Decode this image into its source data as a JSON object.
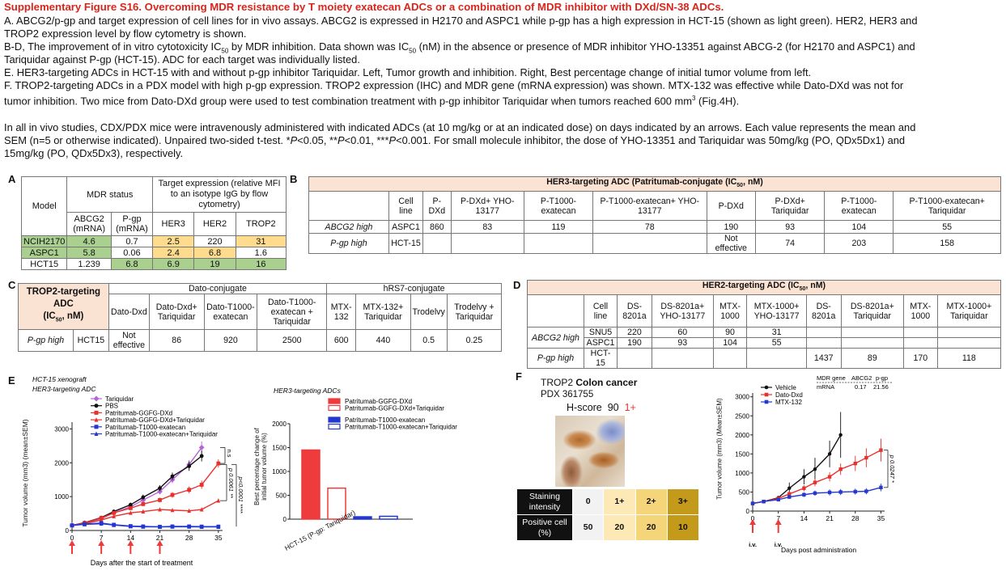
{
  "header": {
    "title": "Supplementary Figure S16. Overcoming MDR resistance by T moiety exatecan ADCs or a combination of MDR inhibitor with DXd/SN-38 ADCs.",
    "lines": [
      "A. ABCG2/p-gp and target expression of cell lines for in vivo assays. ABCG2 is expressed in H2170 and ASPC1 while p-gp has a high expression in HCT-15 (shown as light green). HER2, HER3 and",
      "TROP2 expression level by flow cytometry is shown.",
      "B-D, The improvement of in vitro cytotoxicity IC50 by MDR inhibition. Data shown was IC50 (nM) in the absence or presence of MDR inhibitor YHO-13351 against ABCG-2 (for H2170 and ASPC1) and",
      "Tariquidar against P-gp (HCT-15).  ADC for each target was individually listed.",
      "E. HER3-targeting ADCs in HCT-15 with and without p-gp inhibitor Tariquidar. Left, Tumor growth and inhibition. Right, Best percentage change of initial tumor volume from left.",
      "F. TROP2-targeting ADCs in a PDX model with high p-gp expression. TROP2 expression (IHC) and MDR gene (mRNA expression) was shown. MTX-132 was effective while Dato-DXd was not for",
      "tumor inhibition. Two mice from Dato-DXd group were used to test combination treatment with p-gp inhibitor Tariquidar when tumors reached 600 mm3 (Fig.4H).",
      "",
      "In all in vivo studies, CDX/PDX mice were intravenously administered with indicated ADCs (at 10 mg/kg or at an indicated dose) on days indicated by an arrows. Each value represents the mean and",
      "SEM (n=5 or otherwise indicated). Unpaired two-sided t-test. *P<0.05, **P<0.01, ***P<0.001. For small molecule inhibitor, the dose of YHO-13351 and Tariquidar was 50mg/kg (PO, QDx5Dx1) and",
      "15mg/kg (PO, QDx5Dx3), respectively."
    ]
  },
  "panelA": {
    "label": "A",
    "model": "Model",
    "mdr": "MDR status",
    "target": "Target expression (relative MFI to an isotype IgG by flow cytometry)",
    "cols": [
      "ABCG2 (mRNA)",
      "P-gp (mRNA)",
      "HER3",
      "HER2",
      "TROP2"
    ],
    "rows": [
      [
        "NCIH2170",
        "4.6",
        "0.7",
        "2.5",
        "220",
        "31"
      ],
      [
        "ASPC1",
        "5.8",
        "0.06",
        "2.4",
        "6.8",
        "1.6"
      ],
      [
        "HCT15",
        "1.239",
        "6.8",
        "6.9",
        "19",
        "16"
      ]
    ]
  },
  "panelB": {
    "label": "B",
    "title": "HER3-targeting ADC (Patritumab-conjugate (IC50, nM)",
    "cols": [
      "Cell line",
      "P-DXd",
      "P-DXd+ YHO-13177",
      "P-T1000-exatecan",
      "P-T1000-exatecan+ YHO-13177",
      "P-DXd",
      "P-DXd+ Tariquidar",
      "P-T1000-exatecan",
      "P-T1000-exatecan+ Tariquidar"
    ],
    "rows": [
      [
        "ABCG2 high",
        "ASPC1",
        "860",
        "83",
        "119",
        "78",
        "190",
        "93",
        "104",
        "55"
      ],
      [
        "P-gp high",
        "HCT-15",
        "",
        "",
        "",
        "",
        "Not effective",
        "74",
        "203",
        "158"
      ]
    ]
  },
  "panelC": {
    "label": "C",
    "corner": "TROP2-targeting ADC (IC50, nM)",
    "g1": "Dato-conjugate",
    "g2": "hRS7-conjugate",
    "cols": [
      "Dato-Dxd",
      "Dato-Dxd+ Tariquidar",
      "Dato-T1000-exatecan",
      "Dato-T1000-exatecan + Tariquidar",
      "MTX-132",
      "MTX-132+ Tariquidar",
      "Trodelvy",
      "Trodelvy + Tariquidar"
    ],
    "row": [
      "P-gp high",
      "HCT15",
      "Not effective",
      "86",
      "920",
      "2500",
      "600",
      "440",
      "0.5",
      "0.25"
    ]
  },
  "panelD": {
    "label": "D",
    "title": "HER2-targeting ADC (IC50, nM)",
    "cols": [
      "Cell line",
      "DS-8201a",
      "DS-8201a+ YHO-13177",
      "MTX-1000",
      "MTX-1000+ YHO-13177",
      "DS-8201a",
      "DS-8201a+ Tariquidar",
      "MTX-1000",
      "MTX-1000+ Tariquidar"
    ],
    "rows": [
      [
        "ABCG2 high",
        "SNU5",
        "220",
        "60",
        "90",
        "31",
        "",
        "",
        "",
        ""
      ],
      [
        "",
        "ASPC1",
        "190",
        "93",
        "104",
        "55",
        "",
        "",
        "",
        ""
      ],
      [
        "P-gp high",
        "HCT-15",
        "",
        "",
        "",
        "",
        "1437",
        "89",
        "170",
        "118"
      ]
    ]
  },
  "panelE": {
    "label": "E",
    "subtitle1": "HCT-15 xenograft",
    "subtitle2": "HER3-targeting ADC",
    "ylabel": "Tumor volume (mm3) (mean±SEM)",
    "xlabel": "Days after the start of treatment",
    "ns": "n.s",
    "p1": "p 0.0061 **",
    "p2": "p<0.0001 ****",
    "bar_title": "HER3-targeting ADCs",
    "bar_ylabel1": "Best percentage change of",
    "bar_ylabel2": "initial tumor volume (%)",
    "bar_xlabel": "HCT-15 (P-gp: Tariquidar)"
  },
  "panelF": {
    "label": "F",
    "title1": "TROP2",
    "title2": "Colon cancer",
    "pdx": "PDX 361755",
    "hscore": "H-score",
    "hval": "90",
    "hplus": "1+",
    "grid": {
      "r1": "Staining intensity",
      "r2": "Positive cell (%)",
      "a": [
        "0",
        "1+",
        "2+",
        "3+"
      ],
      "b": [
        "50",
        "20",
        "20",
        "10"
      ]
    },
    "mdr": {
      "h1": "MDR gene",
      "h2": "ABCG2",
      "h3": "p-gp",
      "r1": "mRNA",
      "v1": "0.17",
      "v2": "21.56"
    },
    "ylabel": "Tumor volume (mm3) (Mean±SEM)",
    "xlabel": "Days post administration",
    "iv": "i.v.",
    "p": "p 0.0247 *"
  },
  "chart_data": [
    {
      "type": "line",
      "panel": "E-left",
      "title": "HER3-targeting ADC",
      "xlabel": "Days after the start of treatment",
      "ylabel": "Tumor volume (mm3) (mean±SEM)",
      "xticks": [
        0,
        7,
        14,
        21,
        28,
        35
      ],
      "yticks": [
        0,
        1000,
        2000,
        3000
      ],
      "ylim": [
        0,
        3200
      ],
      "xlim": [
        0,
        36
      ],
      "arrows": [
        0,
        7,
        14,
        21
      ],
      "series": [
        {
          "name": "Tariquidar",
          "color": "#b565d6",
          "marker": "diamond",
          "x": [
            0,
            3,
            7,
            10,
            14,
            17,
            21,
            24,
            28,
            31
          ],
          "y": [
            150,
            220,
            350,
            520,
            700,
            900,
            1150,
            1500,
            1950,
            2450
          ],
          "err": [
            20,
            30,
            40,
            50,
            60,
            70,
            80,
            100,
            130,
            180
          ]
        },
        {
          "name": "PBS",
          "color": "#111111",
          "marker": "circle",
          "x": [
            0,
            3,
            7,
            10,
            14,
            17,
            21,
            24,
            28,
            31
          ],
          "y": [
            150,
            230,
            380,
            560,
            760,
            980,
            1250,
            1600,
            1900,
            2200
          ],
          "err": [
            20,
            30,
            40,
            50,
            60,
            80,
            90,
            110,
            140,
            160
          ]
        },
        {
          "name": "Patritumab-GGFG-DXd",
          "color": "#e8312c",
          "marker": "square",
          "x": [
            0,
            3,
            7,
            10,
            14,
            17,
            21,
            24,
            28,
            31,
            35
          ],
          "y": [
            150,
            220,
            370,
            520,
            660,
            780,
            900,
            1050,
            1200,
            1350,
            1980
          ],
          "err": [
            20,
            25,
            35,
            45,
            55,
            60,
            70,
            80,
            100,
            120,
            120
          ]
        },
        {
          "name": "Patritumab-GGFG-DXd+Tariquidar",
          "color": "#e8312c",
          "marker": "triangle",
          "x": [
            0,
            3,
            7,
            10,
            14,
            17,
            21,
            24,
            28,
            31,
            35
          ],
          "y": [
            150,
            200,
            310,
            420,
            520,
            560,
            620,
            600,
            580,
            620,
            880
          ],
          "err": [
            20,
            25,
            30,
            35,
            40,
            45,
            40,
            40,
            40,
            50,
            60
          ]
        },
        {
          "name": "Patritumab-T1000-exatecan",
          "color": "#2437d1",
          "marker": "square",
          "x": [
            0,
            3,
            7,
            10,
            14,
            17,
            21,
            24,
            28,
            31,
            35
          ],
          "y": [
            150,
            190,
            220,
            170,
            130,
            120,
            110,
            120,
            120,
            115,
            115
          ],
          "err": [
            20,
            20,
            20,
            20,
            15,
            15,
            15,
            15,
            15,
            15,
            15
          ]
        },
        {
          "name": "Patritumab-T1000-exatecan+Tariquidar",
          "color": "#2437d1",
          "marker": "triangle",
          "x": [
            0,
            3,
            7,
            10,
            14,
            17,
            21,
            24,
            28,
            31,
            35
          ],
          "y": [
            150,
            180,
            200,
            160,
            120,
            110,
            105,
            110,
            110,
            105,
            105
          ],
          "err": [
            20,
            20,
            20,
            15,
            15,
            15,
            15,
            15,
            15,
            15,
            15
          ]
        }
      ]
    },
    {
      "type": "bar",
      "panel": "E-right",
      "title": "HER3-targeting ADCs",
      "ylabel": "Best percentage change of initial tumor volume (%)",
      "xlabel": "HCT-15 (P-gp: Tariquidar)",
      "yticks": [
        0,
        500,
        1000,
        1500,
        2000
      ],
      "ylim": [
        0,
        2000
      ],
      "categories": [
        "Patritumab-GGFG-DXd",
        "Patritumab-GGFG-DXd+Tariquidar",
        "Patritumab-T1000-exatecan",
        "Patritumab-T1000-exatecan+Tariquidar"
      ],
      "values": [
        1450,
        650,
        50,
        60
      ],
      "colors": [
        "#ee3b3b",
        "#ee3b3b",
        "#2437d1",
        "#2437d1"
      ],
      "filled": [
        true,
        false,
        true,
        false
      ]
    },
    {
      "type": "line",
      "panel": "F",
      "xlabel": "Days post administration",
      "ylabel": "Tumor volume (mm3) (Mean±SEM)",
      "xticks": [
        0,
        7,
        14,
        21,
        28,
        35
      ],
      "yticks": [
        0,
        500,
        1000,
        1500,
        2000,
        2500,
        3000
      ],
      "ylim": [
        0,
        3100
      ],
      "xlim": [
        0,
        36
      ],
      "arrows": [
        0,
        7
      ],
      "series": [
        {
          "name": "Vehicle",
          "color": "#111111",
          "marker": "circle",
          "x": [
            0,
            3,
            7,
            10,
            14,
            17,
            21,
            24
          ],
          "y": [
            200,
            250,
            350,
            600,
            900,
            1100,
            1500,
            2000
          ],
          "err": [
            20,
            30,
            50,
            150,
            200,
            300,
            350,
            600
          ]
        },
        {
          "name": "Dato-Dxd",
          "color": "#e8312c",
          "marker": "square",
          "x": [
            0,
            3,
            7,
            10,
            14,
            17,
            21,
            24,
            28,
            31,
            35
          ],
          "y": [
            200,
            250,
            330,
            450,
            600,
            750,
            900,
            1100,
            1250,
            1400,
            1600
          ],
          "err": [
            20,
            30,
            40,
            60,
            80,
            100,
            120,
            150,
            200,
            250,
            300
          ]
        },
        {
          "name": "MTX-132",
          "color": "#2437d1",
          "marker": "square",
          "x": [
            0,
            3,
            7,
            10,
            14,
            17,
            21,
            24,
            28,
            31,
            35
          ],
          "y": [
            200,
            250,
            300,
            370,
            430,
            470,
            490,
            500,
            510,
            520,
            620
          ],
          "err": [
            20,
            30,
            40,
            50,
            60,
            70,
            80,
            80,
            80,
            80,
            100
          ]
        }
      ]
    }
  ]
}
